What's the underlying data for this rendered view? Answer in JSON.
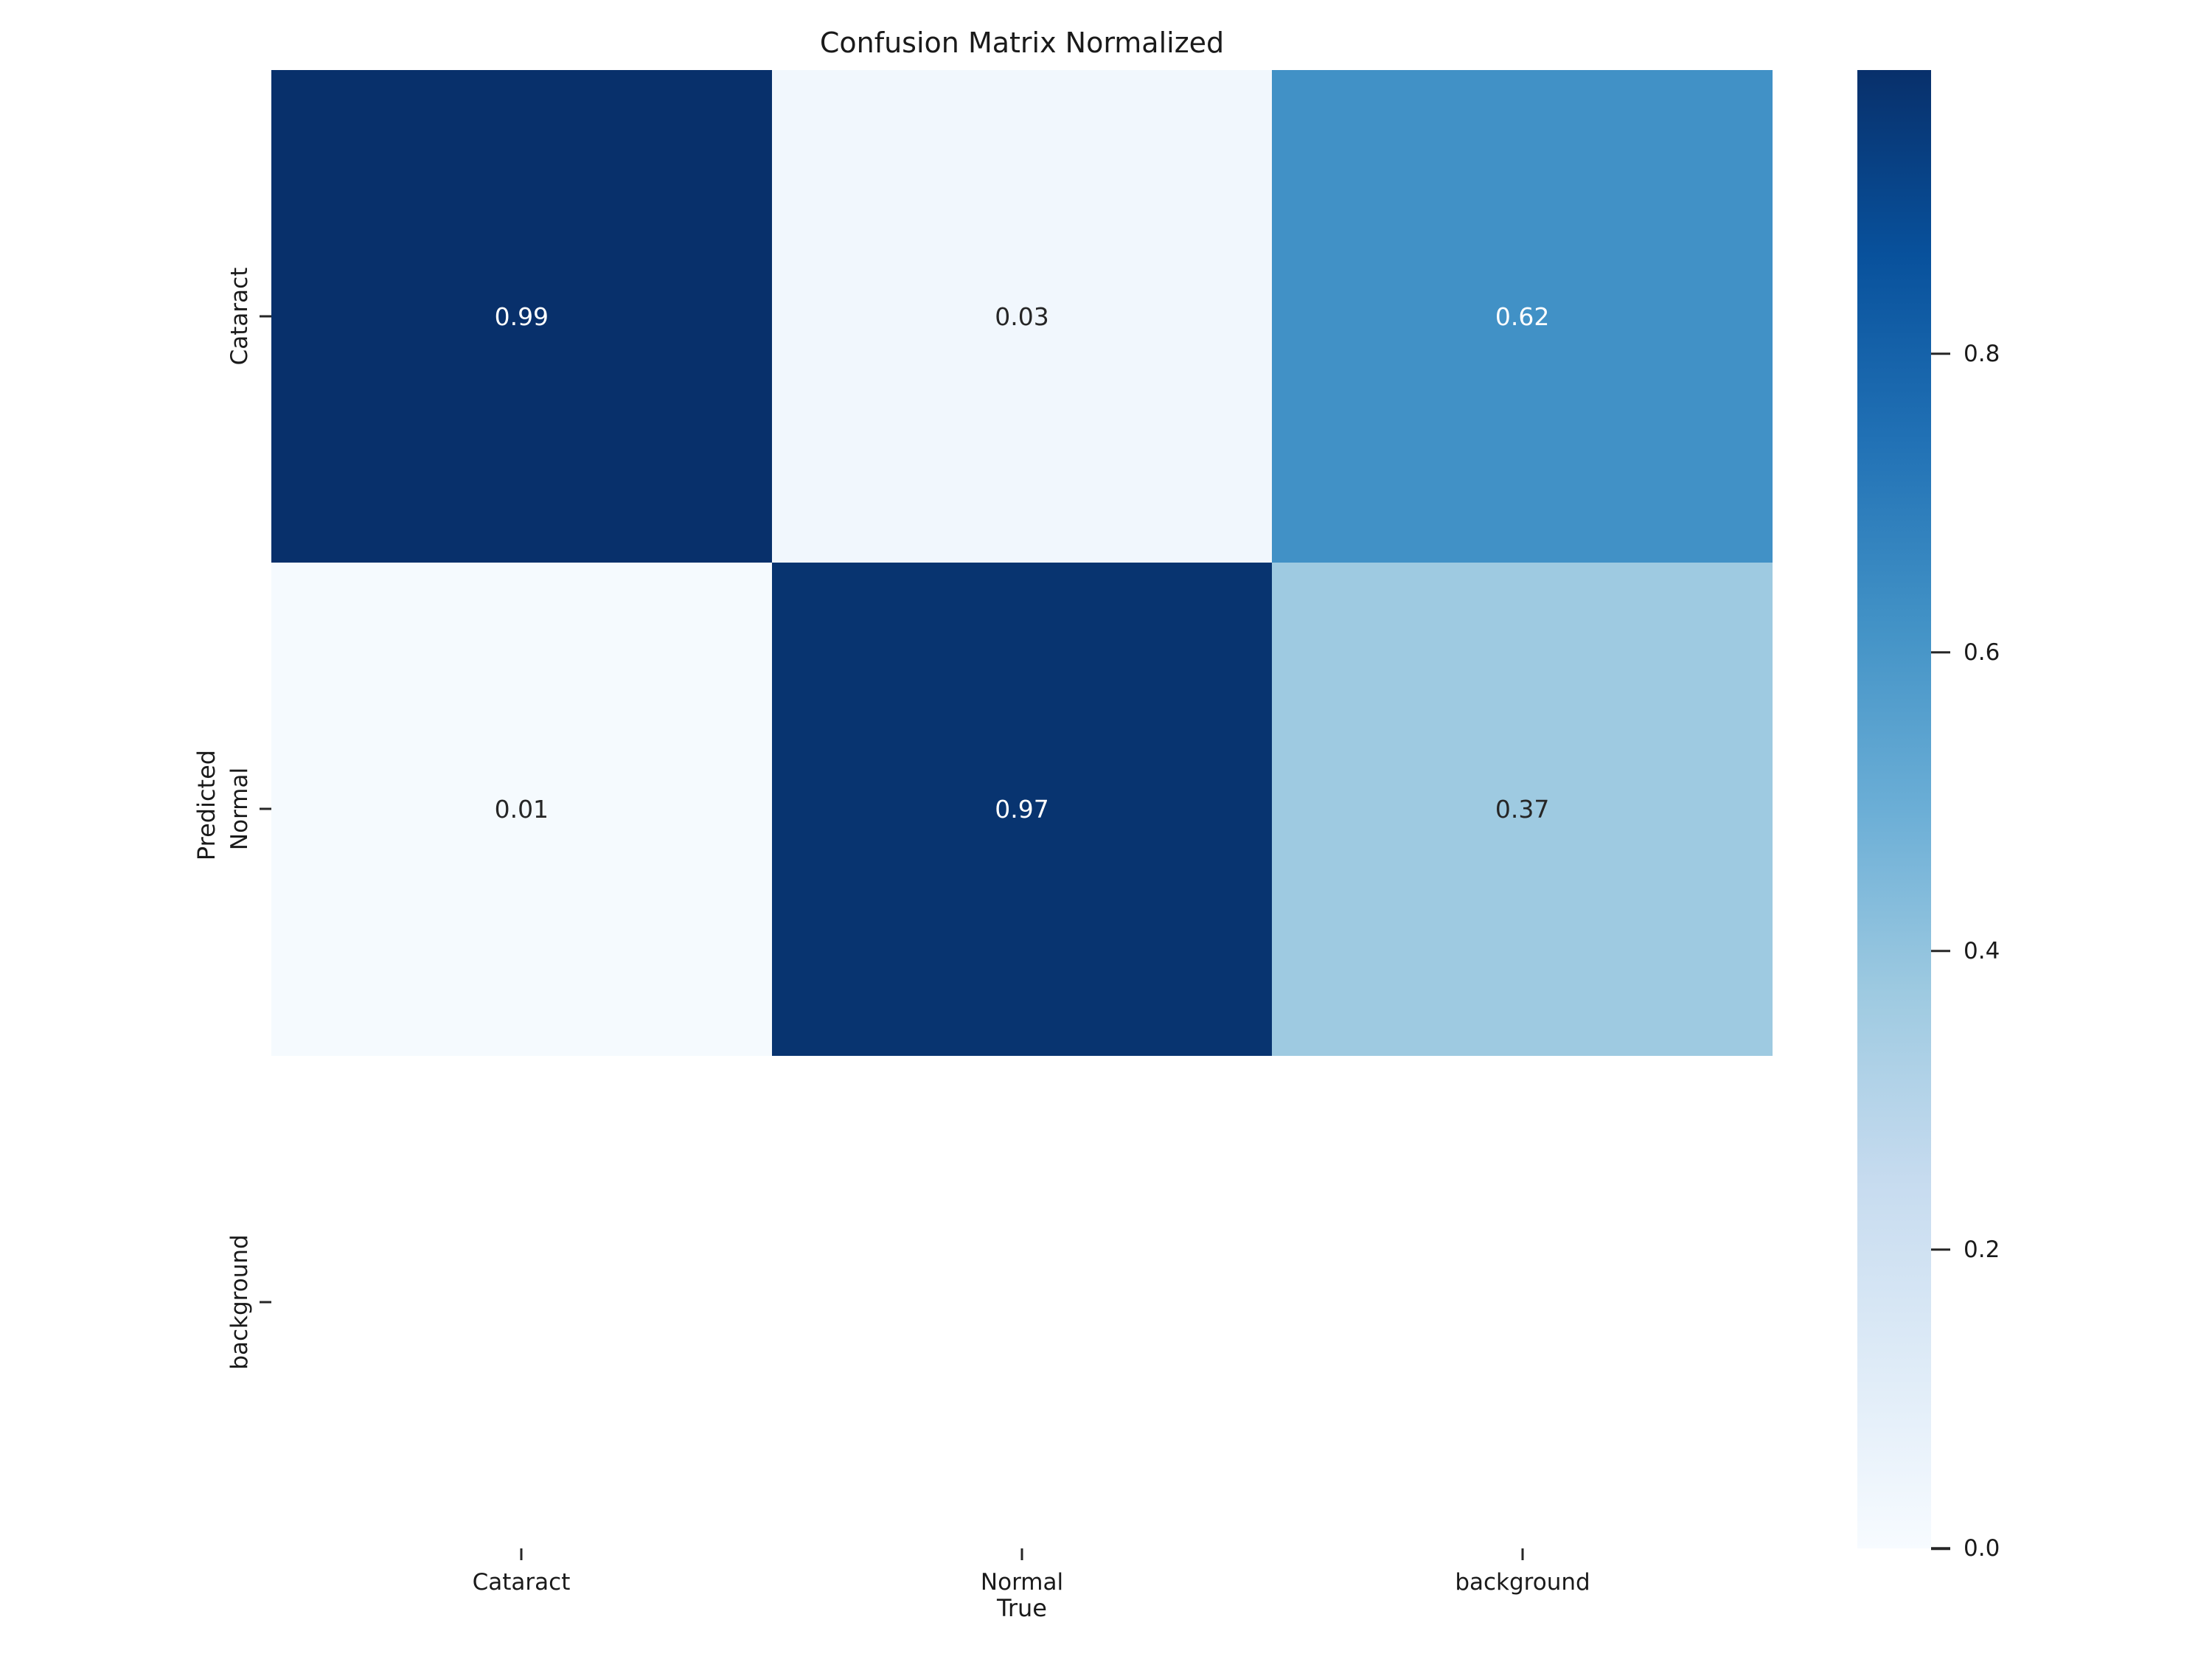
{
  "chart_data": {
    "type": "heatmap",
    "title": "Confusion Matrix Normalized",
    "xlabel": "True",
    "ylabel": "Predicted",
    "x_categories": [
      "Cataract",
      "Normal",
      "background"
    ],
    "y_categories": [
      "Cataract",
      "Normal",
      "background"
    ],
    "rows": [
      [
        0.99,
        0.03,
        0.62
      ],
      [
        0.01,
        0.97,
        0.37
      ],
      [
        null,
        null,
        null
      ]
    ],
    "cell_labels": [
      [
        "0.99",
        "0.03",
        "0.62"
      ],
      [
        "0.01",
        "0.97",
        "0.37"
      ],
      [
        "",
        "",
        ""
      ]
    ],
    "cell_colors": [
      [
        "#08306b",
        "#f1f7fd",
        "#4191c6"
      ],
      [
        "#f5fafe",
        "#083470",
        "#9ecae1"
      ],
      [
        "#ffffff",
        "#ffffff",
        "#ffffff"
      ]
    ],
    "cell_text_colors": [
      [
        "#ffffff",
        "#262626",
        "#ffffff"
      ],
      [
        "#262626",
        "#ffffff",
        "#262626"
      ],
      [
        "#262626",
        "#262626",
        "#262626"
      ]
    ],
    "colormap": "Blues",
    "vmin": 0.0,
    "vmax": 0.99,
    "grid": false,
    "legend_position": "right-colorbar",
    "colorbar_ticks": [
      0.8,
      0.6,
      0.4,
      0.2,
      0.0
    ],
    "colorbar_tick_labels": [
      "0.8",
      "0.6",
      "0.4",
      "0.2",
      "0.0"
    ],
    "colorbar_gradient_stops": [
      "#f7fbff",
      "#deebf7",
      "#c6dbef",
      "#9ecae1",
      "#6baed6",
      "#4292c6",
      "#2171b5",
      "#08519c",
      "#08306b"
    ]
  }
}
